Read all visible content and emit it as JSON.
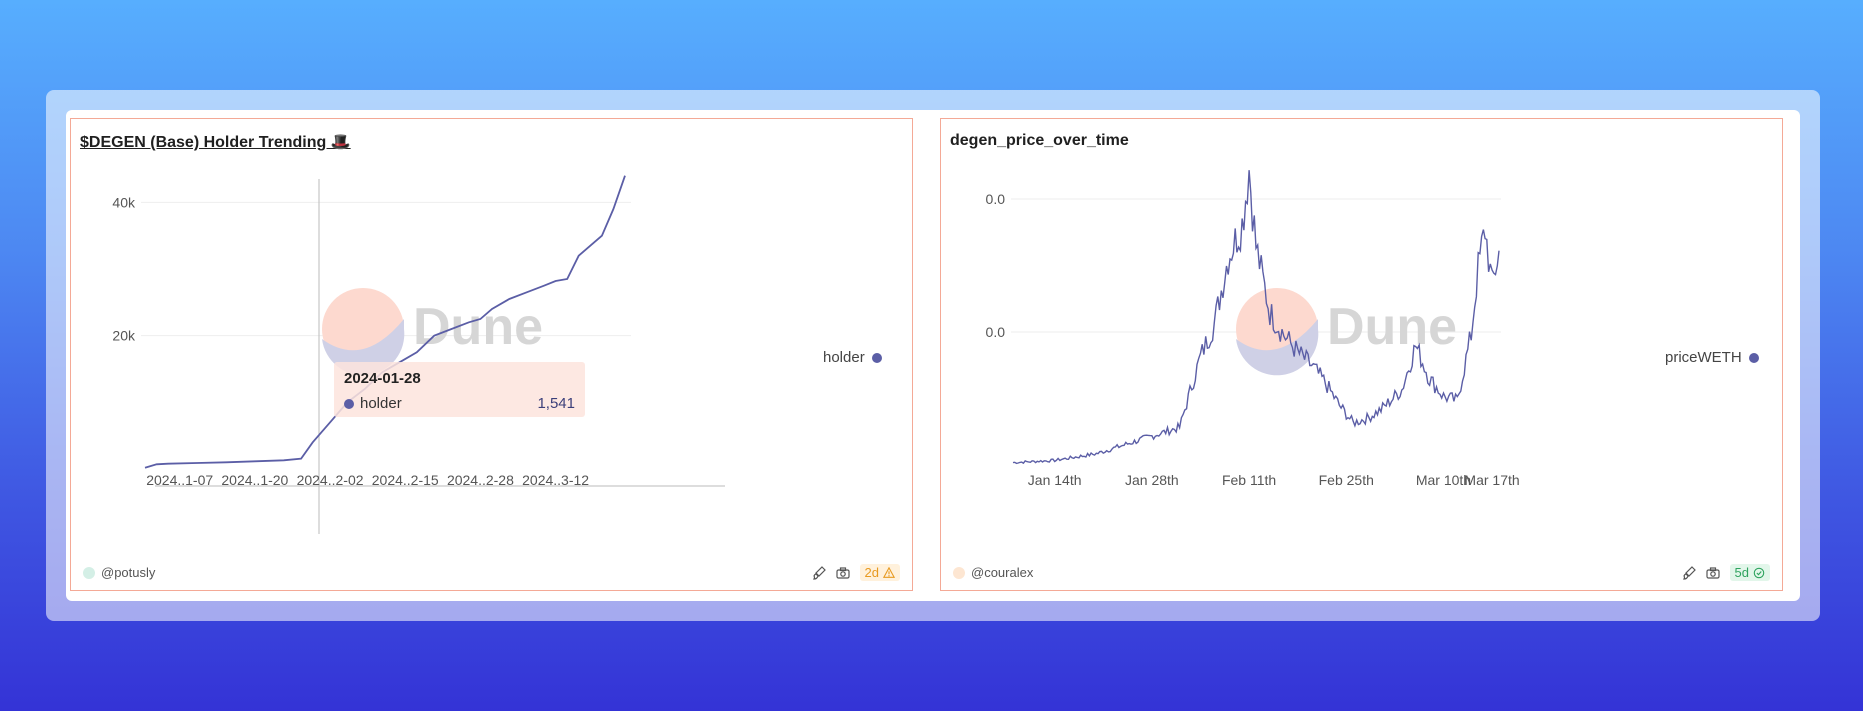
{
  "panels": {
    "left": {
      "title": "$DEGEN (Base) Holder Trending 🎩",
      "author": "@potusly",
      "badge": "2d",
      "legend": "holder",
      "watermark": "Dune",
      "tooltip": {
        "date": "2024-01-28",
        "series": "holder",
        "value": "1,541"
      }
    },
    "right": {
      "title": "degen_price_over_time",
      "author": "@couralex",
      "badge": "5d",
      "legend": "priceWETH",
      "watermark": "Dune"
    }
  },
  "colors": {
    "line": "#5b5ea6",
    "panel_border": "#f4a996",
    "warn_badge": "#e89a20",
    "ok_badge": "#2ea35e"
  },
  "icons": [
    "brush-icon",
    "camera-icon",
    "warning-icon",
    "check-circle-icon"
  ],
  "chart_data": [
    {
      "type": "line",
      "title": "$DEGEN (Base) Holder Trending 🎩",
      "x_tick_labels": [
        "2024..1-07",
        "2024..1-20",
        "2024..2-02",
        "2024..2-15",
        "2024..2-28",
        "2024..3-12"
      ],
      "y_tick_labels": [
        "20k",
        "40k"
      ],
      "ylim": [
        0,
        45000
      ],
      "grid": true,
      "legend_position": "right",
      "series": [
        {
          "name": "holder",
          "x": [
            "2024-01-01",
            "2024-01-03",
            "2024-01-05",
            "2024-01-10",
            "2024-01-15",
            "2024-01-20",
            "2024-01-25",
            "2024-01-28",
            "2024-01-30",
            "2024-02-02",
            "2024-02-05",
            "2024-02-08",
            "2024-02-11",
            "2024-02-14",
            "2024-02-17",
            "2024-02-20",
            "2024-02-23",
            "2024-02-26",
            "2024-02-28",
            "2024-03-01",
            "2024-03-04",
            "2024-03-07",
            "2024-03-10",
            "2024-03-12",
            "2024-03-14",
            "2024-03-16",
            "2024-03-18",
            "2024-03-20",
            "2024-03-22",
            "2024-03-24"
          ],
          "values": [
            200,
            700,
            800,
            900,
            1000,
            1150,
            1300,
            1541,
            4000,
            7000,
            10000,
            12000,
            14500,
            16000,
            17500,
            20000,
            21000,
            22000,
            22500,
            24000,
            25500,
            26500,
            27500,
            28200,
            28500,
            32000,
            33500,
            35000,
            39000,
            44000
          ]
        }
      ]
    },
    {
      "type": "line",
      "title": "degen_price_over_time",
      "x_tick_labels": [
        "Jan 14th",
        "Jan 28th",
        "Feb 11th",
        "Feb 25th",
        "Mar 10th",
        "Mar 17th"
      ],
      "y_tick_labels": [
        "0.0",
        "0.0"
      ],
      "grid": true,
      "legend_position": "right",
      "series": [
        {
          "name": "priceWETH",
          "x": [
            "2024-01-08",
            "2024-01-14",
            "2024-01-20",
            "2024-01-26",
            "2024-02-01",
            "2024-02-04",
            "2024-02-06",
            "2024-02-08",
            "2024-02-10",
            "2024-02-11",
            "2024-02-12",
            "2024-02-14",
            "2024-02-16",
            "2024-02-18",
            "2024-02-20",
            "2024-02-22",
            "2024-02-24",
            "2024-02-26",
            "2024-02-28",
            "2024-03-01",
            "2024-03-04",
            "2024-03-06",
            "2024-03-08",
            "2024-03-10",
            "2024-03-12",
            "2024-03-14",
            "2024-03-15",
            "2024-03-16",
            "2024-03-17",
            "2024-03-18"
          ],
          "values": [
            0.2,
            0.3,
            0.6,
            1.2,
            1.8,
            5.0,
            6.5,
            9.5,
            11.0,
            13.5,
            10.0,
            7.0,
            6.0,
            5.2,
            4.6,
            3.8,
            2.8,
            2.0,
            2.2,
            2.6,
            3.5,
            5.5,
            4.0,
            3.2,
            3.0,
            6.0,
            9.0,
            10.8,
            8.2,
            9.8
          ]
        }
      ]
    }
  ]
}
